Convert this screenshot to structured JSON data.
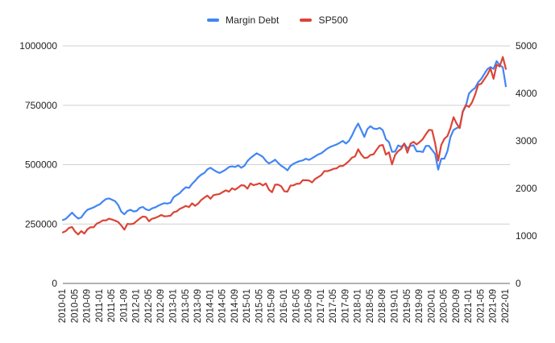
{
  "chart_data": {
    "type": "line",
    "legend_position": "top",
    "grid": "horizontal",
    "grid_color": "#d0d0d0",
    "axis_line_color": "#666666",
    "label_color": "#1f1f1f",
    "x_tick_labels": [
      "2010-01",
      "2010-05",
      "2010-09",
      "2011-01",
      "2011-05",
      "2011-09",
      "2012-01",
      "2012-05",
      "2012-09",
      "2013-01",
      "2013-05",
      "2013-09",
      "2014-01",
      "2014-05",
      "2014-09",
      "2015-01",
      "2015-05",
      "2015-09",
      "2016-01",
      "2016-05",
      "2016-09",
      "2017-01",
      "2017-05",
      "2017-09",
      "2018-01",
      "2018-05",
      "2018-09",
      "2019-01",
      "2019-05",
      "2019-09",
      "2020-01",
      "2020-05",
      "2020-09",
      "2021-01",
      "2021-05",
      "2021-09",
      "2022-01"
    ],
    "x_tick_every_months": 4,
    "months_total": 145,
    "axes": {
      "left": {
        "min": 0,
        "max": 1000000,
        "ticks": [
          0,
          250000,
          500000,
          750000,
          1000000
        ],
        "tick_labels": [
          "0",
          "250000",
          "500000",
          "750000",
          "1000000"
        ]
      },
      "right": {
        "min": 0,
        "max": 5000,
        "ticks": [
          0,
          1000,
          2000,
          3000,
          4000,
          5000
        ],
        "tick_labels": [
          "0",
          "1000",
          "2000",
          "3000",
          "4000",
          "5000"
        ]
      }
    },
    "series": [
      {
        "name": "Margin Debt",
        "axis": "left",
        "color": "#4285f4",
        "values": [
          267000,
          272000,
          285000,
          298000,
          284000,
          273000,
          278000,
          296000,
          310000,
          315000,
          320000,
          327000,
          333000,
          345000,
          355000,
          358000,
          352000,
          346000,
          330000,
          302000,
          291000,
          305000,
          310000,
          303000,
          305000,
          318000,
          322000,
          312000,
          308000,
          316000,
          320000,
          327000,
          333000,
          338000,
          336000,
          340000,
          363000,
          372000,
          380000,
          394000,
          405000,
          402000,
          419000,
          432000,
          447000,
          458000,
          465000,
          480000,
          487000,
          478000,
          470000,
          465000,
          472000,
          480000,
          490000,
          493000,
          490000,
          497000,
          487000,
          495000,
          515000,
          528000,
          538000,
          548000,
          541000,
          533000,
          516000,
          505000,
          512000,
          521000,
          507000,
          495000,
          487000,
          476000,
          495000,
          504000,
          510000,
          515000,
          518000,
          525000,
          520000,
          527000,
          535000,
          543000,
          548000,
          558000,
          568000,
          575000,
          580000,
          585000,
          592000,
          600000,
          589000,
          600000,
          623000,
          651000,
          673000,
          645000,
          617000,
          650000,
          662000,
          652000,
          650000,
          655000,
          645000,
          607000,
          595000,
          554000,
          555000,
          581000,
          575000,
          588000,
          569000,
          579000,
          582000,
          556000,
          556000,
          553000,
          579000,
          579000,
          562000,
          545000,
          479000,
          525000,
          525000,
          556000,
          617000,
          646000,
          654000,
          660000,
          722000,
          747000,
          799000,
          813000,
          823000,
          847000,
          861000,
          882000,
          902000,
          911000,
          903000,
          936000,
          919000,
          910000,
          830000
        ]
      },
      {
        "name": "SP500",
        "axis": "right",
        "color": "#db4437",
        "values": [
          1074,
          1104,
          1169,
          1187,
          1089,
          1031,
          1102,
          1049,
          1141,
          1183,
          1181,
          1258,
          1286,
          1327,
          1326,
          1364,
          1345,
          1321,
          1292,
          1219,
          1131,
          1253,
          1247,
          1258,
          1312,
          1366,
          1408,
          1398,
          1310,
          1362,
          1379,
          1407,
          1441,
          1412,
          1416,
          1426,
          1498,
          1515,
          1569,
          1598,
          1631,
          1606,
          1686,
          1633,
          1682,
          1757,
          1806,
          1848,
          1783,
          1859,
          1872,
          1884,
          1924,
          1960,
          1931,
          2003,
          1972,
          2018,
          2068,
          2059,
          1995,
          2105,
          2068,
          2086,
          2107,
          2063,
          2104,
          1972,
          1920,
          2079,
          2080,
          2044,
          1940,
          1932,
          2060,
          2065,
          2097,
          2099,
          2174,
          2171,
          2168,
          2126,
          2199,
          2239,
          2279,
          2364,
          2363,
          2384,
          2412,
          2423,
          2470,
          2472,
          2519,
          2575,
          2648,
          2674,
          2824,
          2714,
          2641,
          2648,
          2705,
          2718,
          2816,
          2902,
          2914,
          2712,
          2760,
          2507,
          2704,
          2784,
          2834,
          2946,
          2752,
          2942,
          2980,
          2926,
          2977,
          3038,
          3141,
          3231,
          3226,
          2954,
          2585,
          2912,
          3044,
          3100,
          3271,
          3500,
          3363,
          3270,
          3622,
          3756,
          3714,
          3811,
          3973,
          4181,
          4204,
          4298,
          4395,
          4523,
          4308,
          4605,
          4567,
          4766,
          4516
        ]
      }
    ]
  }
}
